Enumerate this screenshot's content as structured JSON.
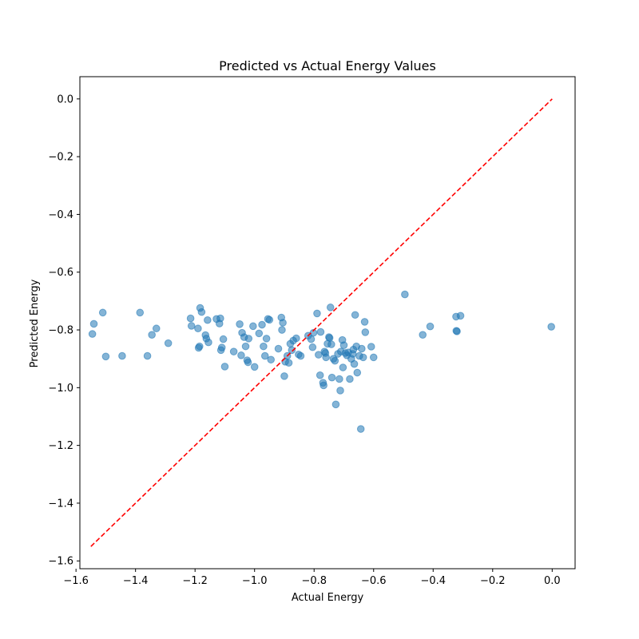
{
  "chart_data": {
    "type": "scatter",
    "title": "Predicted vs Actual Energy Values",
    "xlabel": "Actual Energy",
    "ylabel": "Predicted Energy",
    "xlim": [
      -1.587,
      0.077
    ],
    "ylim": [
      -1.627,
      0.077
    ],
    "xticks": [
      -1.6,
      -1.4,
      -1.2,
      -1.0,
      -0.8,
      -0.6,
      -0.4,
      -0.2,
      0.0
    ],
    "xtick_labels": [
      "−1.6",
      "−1.4",
      "−1.2",
      "−1.0",
      "−0.8",
      "−0.6",
      "−0.4",
      "−0.2",
      "0.0"
    ],
    "yticks": [
      -1.6,
      -1.4,
      -1.2,
      -1.0,
      -0.8,
      -0.6,
      -0.4,
      -0.2,
      0.0
    ],
    "ytick_labels": [
      "−1.6",
      "−1.4",
      "−1.2",
      "−1.0",
      "−0.8",
      "−0.6",
      "−0.4",
      "−0.2",
      "0.0"
    ],
    "grid": false,
    "colors": {
      "points": "#1f77b4",
      "reference_line": "#ff0000"
    },
    "reference_line": {
      "x": [
        -1.55,
        0.0
      ],
      "y": [
        -1.55,
        0.0
      ],
      "style": "dashed"
    },
    "series": [
      {
        "points": [
          [
            -1.545,
            -0.814
          ],
          [
            -1.54,
            -0.779
          ],
          [
            -1.51,
            -0.74
          ],
          [
            -1.5,
            -0.892
          ],
          [
            -1.445,
            -0.89
          ],
          [
            -1.385,
            -0.74
          ],
          [
            -1.36,
            -0.89
          ],
          [
            -1.345,
            -0.817
          ],
          [
            -1.33,
            -0.795
          ],
          [
            -1.29,
            -0.846
          ],
          [
            -1.215,
            -0.76
          ],
          [
            -1.212,
            -0.786
          ],
          [
            -1.19,
            -0.795
          ],
          [
            -1.188,
            -0.862
          ],
          [
            -1.185,
            -0.857
          ],
          [
            -1.183,
            -0.724
          ],
          [
            -1.178,
            -0.738
          ],
          [
            -1.165,
            -0.818
          ],
          [
            -1.162,
            -0.83
          ],
          [
            -1.158,
            -0.766
          ],
          [
            -1.155,
            -0.843
          ],
          [
            -1.128,
            -0.762
          ],
          [
            -1.118,
            -0.778
          ],
          [
            -1.115,
            -0.76
          ],
          [
            -1.113,
            -0.87
          ],
          [
            -1.11,
            -0.861
          ],
          [
            -1.105,
            -0.832
          ],
          [
            -1.1,
            -0.927
          ],
          [
            -1.07,
            -0.875
          ],
          [
            -1.05,
            -0.78
          ],
          [
            -1.045,
            -0.888
          ],
          [
            -1.042,
            -0.81
          ],
          [
            -1.035,
            -0.825
          ],
          [
            -1.03,
            -0.857
          ],
          [
            -1.025,
            -0.905
          ],
          [
            -1.022,
            -0.912
          ],
          [
            -1.02,
            -0.83
          ],
          [
            -1.005,
            -0.787
          ],
          [
            -1.0,
            -0.928
          ],
          [
            -0.985,
            -0.812
          ],
          [
            -0.975,
            -0.782
          ],
          [
            -0.97,
            -0.857
          ],
          [
            -0.965,
            -0.89
          ],
          [
            -0.96,
            -0.83
          ],
          [
            -0.955,
            -0.762
          ],
          [
            -0.95,
            -0.765
          ],
          [
            -0.945,
            -0.903
          ],
          [
            -0.92,
            -0.865
          ],
          [
            -0.91,
            -0.757
          ],
          [
            -0.908,
            -0.8
          ],
          [
            -0.905,
            -0.775
          ],
          [
            -0.9,
            -0.96
          ],
          [
            -0.897,
            -0.91
          ],
          [
            -0.89,
            -0.89
          ],
          [
            -0.885,
            -0.914
          ],
          [
            -0.88,
            -0.848
          ],
          [
            -0.875,
            -0.87
          ],
          [
            -0.87,
            -0.837
          ],
          [
            -0.86,
            -0.829
          ],
          [
            -0.852,
            -0.885
          ],
          [
            -0.845,
            -0.89
          ],
          [
            -0.82,
            -0.82
          ],
          [
            -0.81,
            -0.832
          ],
          [
            -0.805,
            -0.86
          ],
          [
            -0.802,
            -0.81
          ],
          [
            -0.79,
            -0.743
          ],
          [
            -0.785,
            -0.886
          ],
          [
            -0.78,
            -0.957
          ],
          [
            -0.778,
            -0.807
          ],
          [
            -0.77,
            -0.983
          ],
          [
            -0.768,
            -0.992
          ],
          [
            -0.765,
            -0.875
          ],
          [
            -0.762,
            -0.88
          ],
          [
            -0.76,
            -0.895
          ],
          [
            -0.755,
            -0.848
          ],
          [
            -0.75,
            -0.825
          ],
          [
            -0.748,
            -0.828
          ],
          [
            -0.745,
            -0.722
          ],
          [
            -0.742,
            -0.85
          ],
          [
            -0.74,
            -0.965
          ],
          [
            -0.735,
            -0.9
          ],
          [
            -0.73,
            -0.907
          ],
          [
            -0.727,
            -1.058
          ],
          [
            -0.72,
            -0.883
          ],
          [
            -0.715,
            -0.97
          ],
          [
            -0.712,
            -1.01
          ],
          [
            -0.71,
            -0.875
          ],
          [
            -0.705,
            -0.835
          ],
          [
            -0.703,
            -0.93
          ],
          [
            -0.7,
            -0.853
          ],
          [
            -0.695,
            -0.88
          ],
          [
            -0.69,
            -0.888
          ],
          [
            -0.685,
            -0.878
          ],
          [
            -0.68,
            -0.97
          ],
          [
            -0.675,
            -0.9
          ],
          [
            -0.67,
            -0.883
          ],
          [
            -0.668,
            -0.868
          ],
          [
            -0.665,
            -0.918
          ],
          [
            -0.662,
            -0.748
          ],
          [
            -0.658,
            -0.857
          ],
          [
            -0.655,
            -0.948
          ],
          [
            -0.648,
            -0.89
          ],
          [
            -0.643,
            -1.143
          ],
          [
            -0.64,
            -0.865
          ],
          [
            -0.635,
            -0.895
          ],
          [
            -0.63,
            -0.772
          ],
          [
            -0.628,
            -0.808
          ],
          [
            -0.608,
            -0.858
          ],
          [
            -0.6,
            -0.895
          ],
          [
            -0.495,
            -0.677
          ],
          [
            -0.435,
            -0.817
          ],
          [
            -0.41,
            -0.788
          ],
          [
            -0.323,
            -0.754
          ],
          [
            -0.322,
            -0.803
          ],
          [
            -0.32,
            -0.805
          ],
          [
            -0.308,
            -0.751
          ],
          [
            -0.003,
            -0.789
          ]
        ]
      }
    ]
  }
}
